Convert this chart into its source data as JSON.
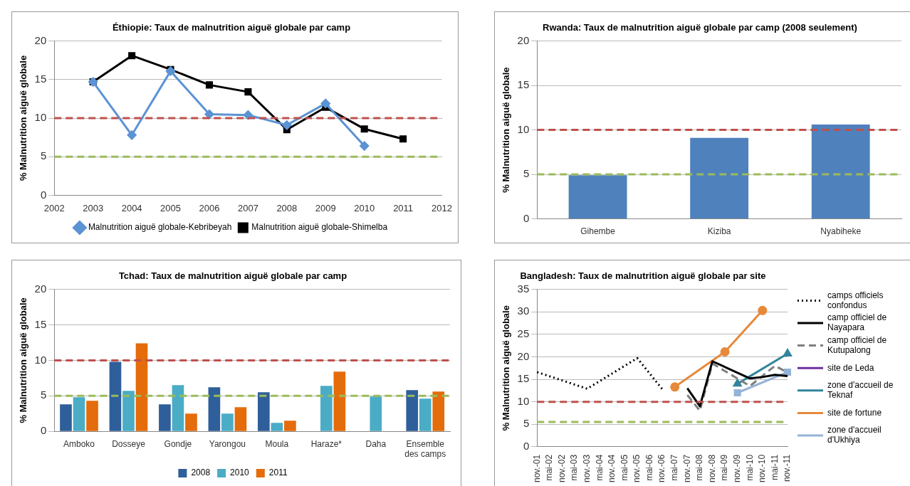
{
  "chart_data": [
    {
      "type": "line",
      "title": "Éthiopie: Taux de malnutrition aiguë globale par camp",
      "ylabel": "% Malnutrition aiguë globale",
      "x": [
        2003,
        2004,
        2005,
        2006,
        2007,
        2008,
        2009,
        2010,
        2011
      ],
      "xlim": [
        2002,
        2012
      ],
      "xticks": [
        2002,
        2003,
        2004,
        2005,
        2006,
        2007,
        2008,
        2009,
        2010,
        2011,
        2012
      ],
      "ylim": [
        0,
        20
      ],
      "yticks": [
        0,
        5,
        10,
        15,
        20
      ],
      "grid": "y",
      "legend": "bottom",
      "series": [
        {
          "name": "Malnutrition aiguë globale-Kebribeyah",
          "color": "#5b93d3",
          "marker": "diamond",
          "values": [
            14.7,
            7.8,
            16.1,
            10.5,
            10.4,
            9.1,
            11.9,
            6.4,
            null
          ]
        },
        {
          "name": "Malnutrition aiguë globale-Shimelba",
          "color": "#000000",
          "marker": "square",
          "values": [
            14.7,
            18.1,
            16.3,
            14.3,
            13.4,
            8.5,
            11.4,
            8.6,
            7.3
          ]
        }
      ],
      "ref_lines": [
        {
          "axis": "y",
          "value": 10,
          "color": "#c0504d",
          "line_style": "dashed"
        },
        {
          "axis": "y",
          "value": 5,
          "color": "#9bbb59",
          "line_style": "dashed"
        }
      ]
    },
    {
      "type": "bar",
      "title": "Rwanda: Taux de malnutrition aiguë globale par camp (2008 seulement)",
      "ylabel": "% Malnutrition aiguë globale",
      "categories": [
        "Gihembe",
        "Kiziba",
        "Nyabiheke"
      ],
      "values": [
        4.9,
        9.1,
        10.6
      ],
      "color": "#4f81bd",
      "ylim": [
        0,
        20
      ],
      "yticks": [
        0,
        5,
        10,
        15,
        20
      ],
      "grid": "y",
      "ref_lines": [
        {
          "axis": "y",
          "value": 10,
          "color": "#c0504d",
          "line_style": "dashed"
        },
        {
          "axis": "y",
          "value": 5,
          "color": "#9bbb59",
          "line_style": "dashed"
        }
      ]
    },
    {
      "type": "bar",
      "title": "Tchad: Taux de malnutrition aiguë globale par camp",
      "ylabel": "% Malnutrition aiguë globale",
      "categories": [
        "Amboko",
        "Dosseye",
        "Gondje",
        "Yarongou",
        "Moula",
        "Haraze*",
        "Daha",
        "Ensemble des camps"
      ],
      "ylim": [
        0,
        20
      ],
      "yticks": [
        0,
        5,
        10,
        15,
        20
      ],
      "grid": "y",
      "legend": "bottom",
      "series": [
        {
          "name": "2008",
          "color": "#2e5f9a",
          "values": [
            3.8,
            9.8,
            3.8,
            6.2,
            5.5,
            null,
            null,
            5.8
          ]
        },
        {
          "name": "2010",
          "color": "#4bacc6",
          "values": [
            4.8,
            5.7,
            6.5,
            2.5,
            1.2,
            6.4,
            4.9,
            4.6
          ]
        },
        {
          "name": "2011",
          "color": "#e46c0a",
          "values": [
            4.3,
            12.4,
            2.5,
            3.4,
            1.5,
            8.4,
            null,
            5.6
          ]
        }
      ],
      "ref_lines": [
        {
          "axis": "y",
          "value": 10,
          "color": "#c0504d",
          "line_style": "dashed"
        },
        {
          "axis": "y",
          "value": 5,
          "color": "#9bbb59",
          "line_style": "dashed"
        }
      ]
    },
    {
      "type": "line",
      "title": "Bangladesh: Taux de malnutrition aiguë globale par site",
      "ylabel": "% Malnutrition aiguë globale",
      "categories": [
        "nov.-01",
        "mai-02",
        "nov.-02",
        "mai-03",
        "nov.-03",
        "mai-04",
        "nov.-04",
        "mai-05",
        "nov.-05",
        "mai-06",
        "nov.-06",
        "mai-07",
        "nov.-07",
        "mai-08",
        "nov.-08",
        "mai-09",
        "nov.-09",
        "mai-10",
        "nov.-10",
        "mai-11",
        "nov.-11"
      ],
      "ylim": [
        0,
        35
      ],
      "yticks": [
        0,
        5,
        10,
        15,
        20,
        25,
        30,
        35
      ],
      "grid": "y",
      "legend": "right",
      "series": [
        {
          "name": "camps officiels confondus",
          "color": "#000000",
          "line_style": "dotted",
          "marker": "none",
          "values": [
            16.6,
            null,
            null,
            null,
            12.9,
            null,
            null,
            null,
            19.7,
            null,
            12.8,
            null,
            null,
            null,
            null,
            null,
            null,
            null,
            null,
            null,
            null
          ]
        },
        {
          "name": "camp officiel de Nayapara",
          "color": "#000000",
          "line_style": "solid",
          "marker": "none",
          "values": [
            null,
            null,
            null,
            null,
            null,
            null,
            null,
            null,
            null,
            null,
            null,
            null,
            13.0,
            9.0,
            19.0,
            null,
            null,
            15.2,
            15.5,
            16.0,
            15.7
          ]
        },
        {
          "name": "camp officiel de Kutupalong",
          "color": "#808080",
          "line_style": "dashed",
          "marker": "none",
          "values": [
            null,
            null,
            null,
            null,
            null,
            null,
            null,
            null,
            null,
            null,
            null,
            null,
            11.5,
            8.0,
            18.5,
            null,
            null,
            13.5,
            null,
            18.0,
            16.5
          ]
        },
        {
          "name": "site de Leda",
          "color": "#7030a0",
          "line_style": "solid",
          "marker": "none",
          "values": [
            null,
            null,
            null,
            null,
            null,
            null,
            null,
            null,
            null,
            null,
            null,
            null,
            null,
            null,
            null,
            null,
            null,
            null,
            null,
            null,
            null
          ]
        },
        {
          "name": "zone d'accueil de Teknaf",
          "color": "#31859c",
          "line_style": "solid",
          "marker": "triangle",
          "values": [
            null,
            null,
            null,
            null,
            null,
            null,
            null,
            null,
            null,
            null,
            null,
            null,
            null,
            null,
            null,
            null,
            14.0,
            null,
            null,
            null,
            20.7
          ]
        },
        {
          "name": "site de fortune",
          "color": "#e7893a",
          "line_style": "solid",
          "marker": "circle",
          "values": [
            null,
            null,
            null,
            null,
            null,
            null,
            null,
            null,
            null,
            null,
            null,
            13.3,
            null,
            null,
            null,
            21.1,
            null,
            null,
            30.3,
            null,
            null
          ]
        },
        {
          "name": "zone d'accueil d'Ukhiya",
          "color": "#95b3d7",
          "line_style": "solid",
          "marker": "square",
          "values": [
            null,
            null,
            null,
            null,
            null,
            null,
            null,
            null,
            null,
            null,
            null,
            null,
            null,
            null,
            null,
            null,
            12.0,
            null,
            null,
            null,
            16.6
          ]
        }
      ],
      "ref_lines": [
        {
          "axis": "y",
          "value": 10,
          "color": "#c0504d",
          "line_style": "dashed"
        },
        {
          "axis": "y",
          "value": 5.5,
          "color": "#9bbb59",
          "line_style": "dashed"
        }
      ]
    }
  ]
}
